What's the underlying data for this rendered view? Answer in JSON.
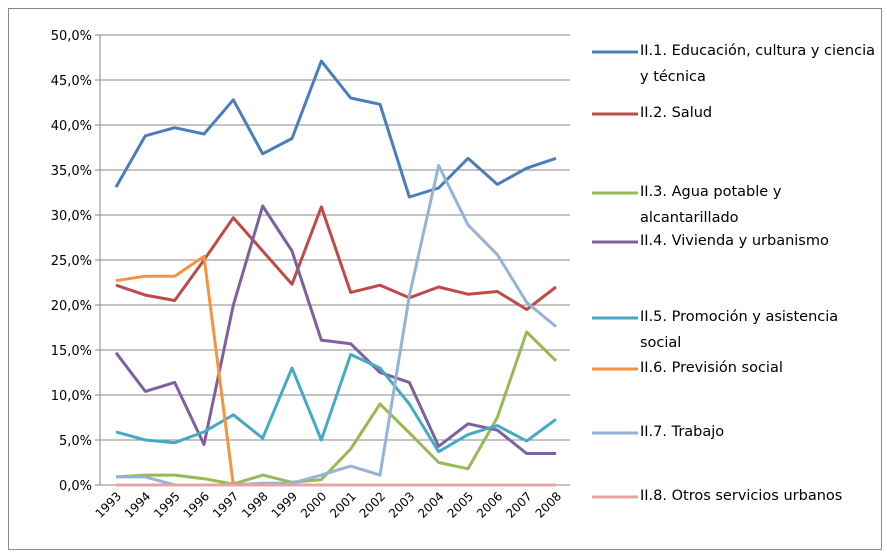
{
  "chart_data": {
    "type": "line",
    "categories": [
      "1993",
      "1994",
      "1995",
      "1996",
      "1997",
      "1998",
      "1999",
      "2000",
      "2001",
      "2002",
      "2003",
      "2004",
      "2005",
      "2006",
      "2007",
      "2008"
    ],
    "ylim": [
      0,
      50
    ],
    "yticks": [
      {
        "value": 0,
        "label": "0,0%"
      },
      {
        "value": 5,
        "label": "5,0%"
      },
      {
        "value": 10,
        "label": "10,0%"
      },
      {
        "value": 15,
        "label": "15,0%"
      },
      {
        "value": 20,
        "label": "20,0%"
      },
      {
        "value": 25,
        "label": "25,0%"
      },
      {
        "value": 30,
        "label": "30,0%"
      },
      {
        "value": 35,
        "label": "35,0%"
      },
      {
        "value": 40,
        "label": "40,0%"
      },
      {
        "value": 45,
        "label": "45,0%"
      },
      {
        "value": 50,
        "label": "50,0%"
      }
    ],
    "grid": true,
    "legend": "right",
    "series": [
      {
        "name": "II.1. Educación, cultura y ciencia y técnica",
        "color": "#4a7ebb",
        "values": [
          33.1,
          38.8,
          39.7,
          39.0,
          42.8,
          36.8,
          38.5,
          47.1,
          43.0,
          42.3,
          32.0,
          33.0,
          36.3,
          33.4,
          35.2,
          36.3
        ]
      },
      {
        "name": "II.2. Salud",
        "color": "#be4b48",
        "values": [
          22.2,
          21.1,
          20.5,
          25.0,
          29.7,
          26.0,
          22.3,
          30.9,
          21.4,
          22.2,
          20.8,
          22.0,
          21.2,
          21.5,
          19.5,
          22.0
        ]
      },
      {
        "name": "II.3. Agua potable y alcantarillado",
        "color": "#98b954",
        "values": [
          0.9,
          1.1,
          1.1,
          0.7,
          0.1,
          1.1,
          0.3,
          0.6,
          4.0,
          9.0,
          5.8,
          2.5,
          1.8,
          7.5,
          17.0,
          13.8
        ]
      },
      {
        "name": "II.4. Vivienda y urbanismo",
        "color": "#7d60a0",
        "values": [
          14.7,
          10.4,
          11.4,
          4.5,
          20.0,
          31.0,
          26.0,
          16.1,
          15.7,
          12.5,
          11.4,
          4.3,
          6.8,
          6.1,
          3.5,
          3.5
        ]
      },
      {
        "name": "II.5. Promoción y asistencia social",
        "color": "#46aac5",
        "values": [
          5.9,
          5.0,
          4.7,
          5.9,
          7.8,
          5.2,
          13.0,
          5.0,
          14.5,
          13.0,
          9.0,
          3.7,
          5.6,
          6.6,
          4.9,
          7.3
        ]
      },
      {
        "name": "II.6. Previsión social",
        "color": "#f69240",
        "values": [
          22.7,
          23.2,
          23.2,
          25.4,
          0,
          0,
          0,
          0,
          0,
          0,
          0,
          0,
          0,
          0,
          0,
          0
        ]
      },
      {
        "name": "II.7. Trabajo",
        "color": "#95b3d7",
        "values": [
          0.9,
          0.9,
          0,
          0,
          0,
          0.2,
          0.2,
          1.1,
          2.1,
          1.1,
          21.0,
          35.5,
          28.9,
          25.6,
          20.3,
          17.6
        ]
      },
      {
        "name": "II.8. Otros servicios urbanos",
        "color": "#e6a5a5",
        "values": [
          0,
          0,
          0,
          0,
          0,
          0,
          0,
          0,
          0,
          0,
          0,
          0,
          0,
          0,
          0,
          0
        ]
      }
    ]
  }
}
